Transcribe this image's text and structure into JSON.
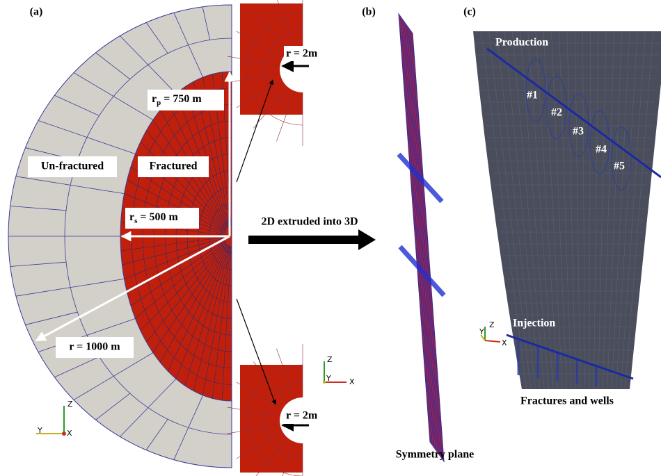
{
  "panels": {
    "a": {
      "label": "(a)",
      "unfractured": "Un-fractured",
      "fractured": "Fractured",
      "rp": {
        "symbol": "r",
        "sub": "p",
        "value": "= 750 m"
      },
      "rs": {
        "symbol": "r",
        "sub": "s",
        "value": "= 500 m"
      },
      "r": "r = 1000 m",
      "inset_top": "r = 2m",
      "inset_bottom": "r = 2m",
      "axes": {
        "z": "Z",
        "y": "Y",
        "x": "X"
      }
    },
    "arrow_text": "2D extruded into 3D",
    "b": {
      "label": "(b)",
      "caption": "Symmetry plane",
      "axes": {
        "z": "Z",
        "y": "Y",
        "x": "X"
      }
    },
    "c": {
      "label": "(c)",
      "production": "Production",
      "injection": "Injection",
      "fractures": [
        "#1",
        "#2",
        "#3",
        "#4",
        "#5"
      ],
      "caption": "Fractures and wells",
      "axes": {
        "z": "Z",
        "y": "Y",
        "x": "X"
      }
    }
  }
}
